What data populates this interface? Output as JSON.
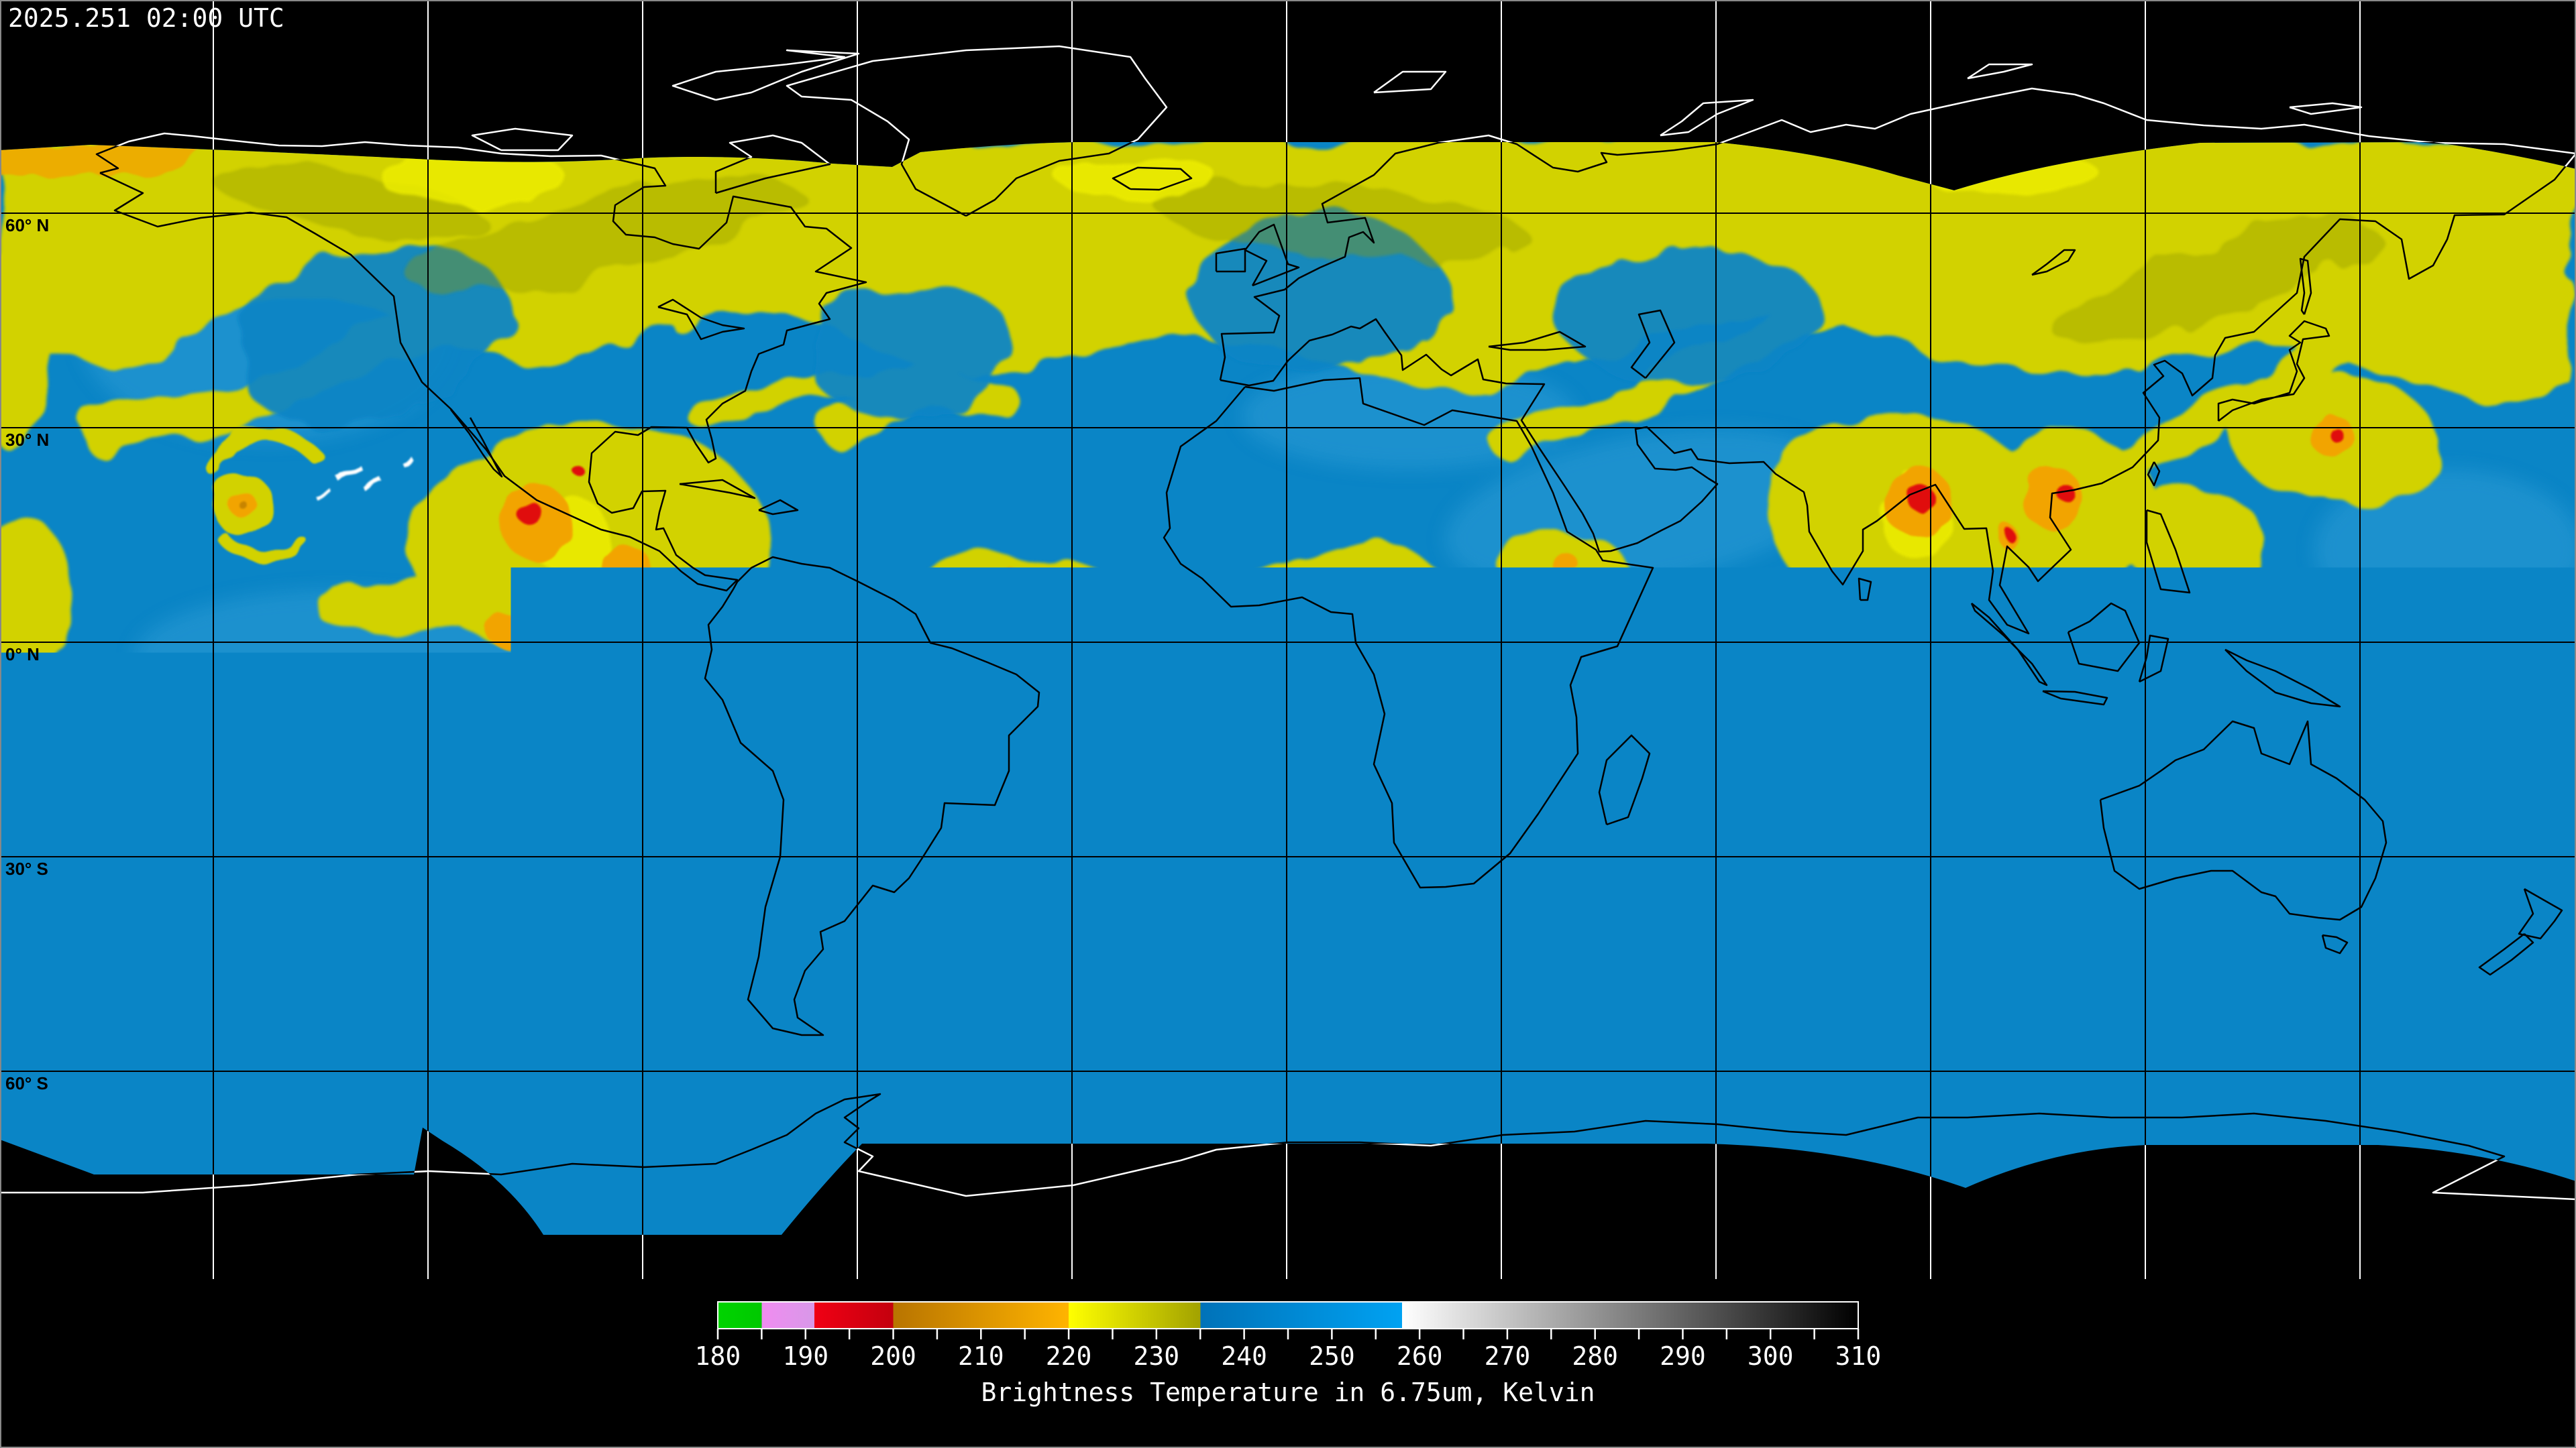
{
  "header": {
    "timestamp": "2025.251 02:00 UTC"
  },
  "map": {
    "latitude_labels": [
      {
        "label": "60° N"
      },
      {
        "label": "30° N"
      },
      {
        "label": "0° N"
      },
      {
        "label": "30° S"
      },
      {
        "label": "60° S"
      }
    ],
    "graticule_spacing_deg": 30
  },
  "colorbar": {
    "title": "Brightness Temperature in 6.75um, Kelvin",
    "min": 180,
    "max": 310,
    "minor_tick_step": 5,
    "tick_labels": [
      "180",
      "190",
      "200",
      "210",
      "220",
      "230",
      "240",
      "250",
      "260",
      "270",
      "280",
      "290",
      "300",
      "310"
    ],
    "stops": [
      {
        "t": 180,
        "color": "#00d400"
      },
      {
        "t": 185,
        "color": "#00c800"
      },
      {
        "t": 185,
        "color": "#f08cf0"
      },
      {
        "t": 191,
        "color": "#d898e8"
      },
      {
        "t": 191,
        "color": "#f00014"
      },
      {
        "t": 200,
        "color": "#c4000e"
      },
      {
        "t": 200,
        "color": "#b87400"
      },
      {
        "t": 220,
        "color": "#ffb400"
      },
      {
        "t": 220,
        "color": "#ffff00"
      },
      {
        "t": 235,
        "color": "#a2a200"
      },
      {
        "t": 235,
        "color": "#0072b8"
      },
      {
        "t": 258,
        "color": "#00a2f2"
      },
      {
        "t": 258,
        "color": "#ffffff"
      },
      {
        "t": 310,
        "color": "#000000"
      }
    ]
  },
  "palette": {
    "void": "#000000",
    "ocean_blue": "#0a85c6",
    "light_blue": "#39a3da",
    "cloud_yellow": "#d2d204",
    "bright_yellow": "#ededM06",
    "bright_yellow_fix": "#eded06",
    "olive": "#8f9800",
    "orange": "#f2a404",
    "red": "#e01008",
    "white_cloud": "#ffffff",
    "coast_over_data": "#000000",
    "coast_over_void": "#ffffff",
    "grid_over_data": "#000000",
    "grid_over_void": "#ffffff",
    "text": "#ffffff"
  }
}
